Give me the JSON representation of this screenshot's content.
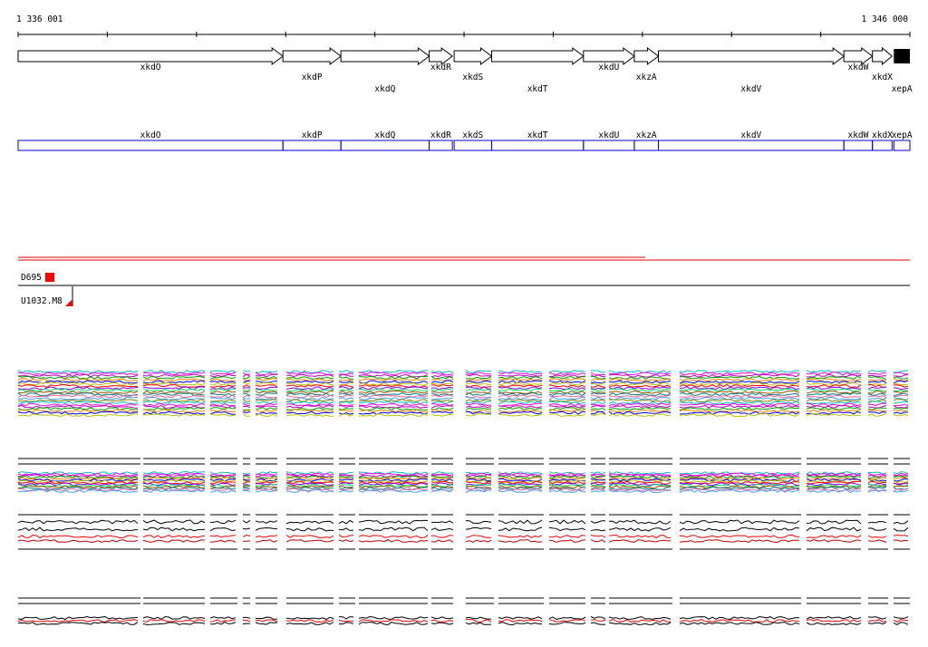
{
  "ruler": {
    "start_label": "1 336 001",
    "end_label": "1 346 000",
    "start_bp": 1336001,
    "end_bp": 1346000,
    "tick_interval_bp": 1000
  },
  "genes": [
    {
      "name": "xkdO",
      "start": 1336001,
      "end": 1338970
    },
    {
      "name": "xkdP",
      "start": 1338970,
      "end": 1339620
    },
    {
      "name": "xkdQ",
      "start": 1339620,
      "end": 1340610
    },
    {
      "name": "xkdR",
      "start": 1340610,
      "end": 1340870
    },
    {
      "name": "xkdS",
      "start": 1340890,
      "end": 1341310
    },
    {
      "name": "xkdT",
      "start": 1341310,
      "end": 1342340
    },
    {
      "name": "xkdU",
      "start": 1342340,
      "end": 1342910
    },
    {
      "name": "xkzA",
      "start": 1342910,
      "end": 1343180
    },
    {
      "name": "xkdV",
      "start": 1343180,
      "end": 1345260
    },
    {
      "name": "xkdW",
      "start": 1345260,
      "end": 1345580
    },
    {
      "name": "xkdX",
      "start": 1345580,
      "end": 1345800
    },
    {
      "name": "xepA",
      "start": 1345820,
      "end": 1346000
    }
  ],
  "transcript_labels": [
    "xkdO",
    "xkdP",
    "xkdQ",
    "xkdR",
    "xkdS",
    "xkdT",
    "xkdU",
    "xkzA",
    "xkdV",
    "xkdW",
    "xkdX",
    "xepA"
  ],
  "features": [
    {
      "label": "D695",
      "type": "box"
    },
    {
      "label": "U1032.M8",
      "type": "triangle"
    }
  ],
  "colors": {
    "gene_fill": "#ffffff",
    "gene_stroke": "#000000",
    "last_gene_fill": "#000000",
    "transcript_stroke": "#0000cc",
    "red_line": "#e00000",
    "feature_red": "#ff0000"
  }
}
